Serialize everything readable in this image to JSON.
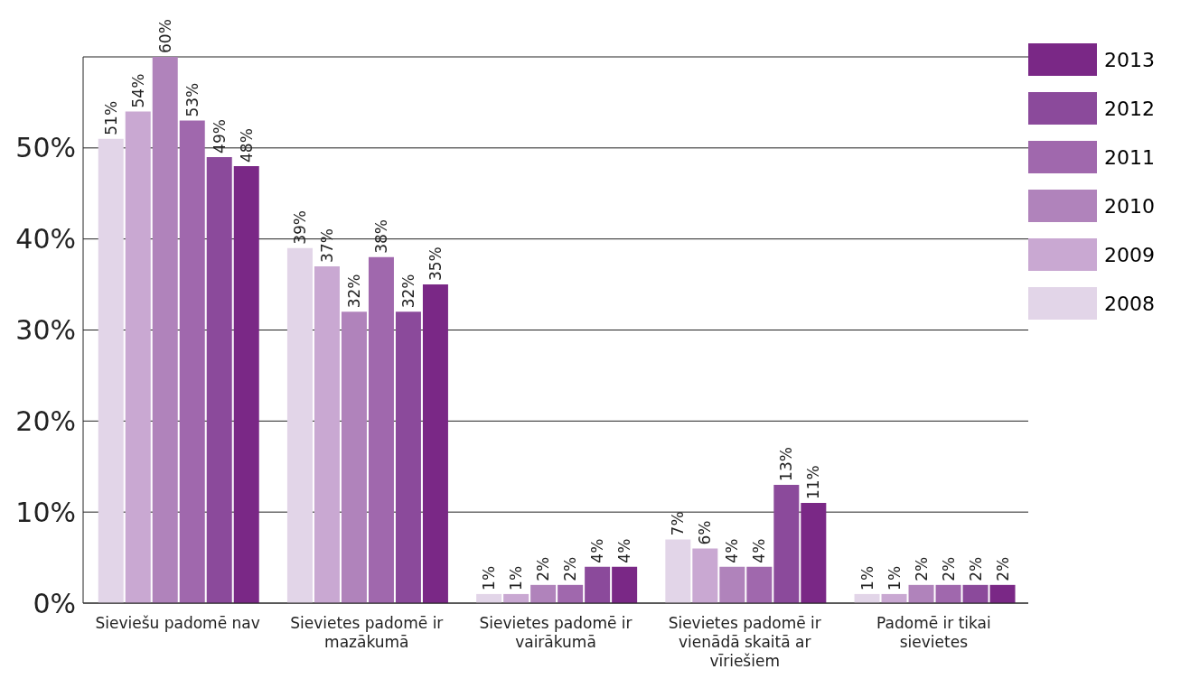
{
  "chart_data": {
    "type": "bar",
    "categories": [
      "Sieviešu padomē nav",
      "Sievietes padomē ir mazākumā",
      "Sievietes padomē ir vairākumā",
      "Sievietes padomē ir vienādā skaitā ar vīriešiem",
      "Padomē ir tikai sievietes"
    ],
    "series": [
      {
        "name": "2008",
        "color": "#e2d5e8",
        "values": [
          51,
          39,
          1,
          7,
          1
        ],
        "value_labels": [
          "51%",
          "39%",
          "1%",
          "7%",
          "1%"
        ]
      },
      {
        "name": "2009",
        "color": "#c9a8d2",
        "values": [
          54,
          37,
          1,
          6,
          1
        ],
        "value_labels": [
          "54%",
          "37%",
          "1%",
          "6%",
          "1%"
        ]
      },
      {
        "name": "2010",
        "color": "#b083bb",
        "values": [
          60,
          32,
          2,
          4,
          2
        ],
        "value_labels": [
          "60%",
          "32%",
          "2%",
          "4%",
          "2%"
        ]
      },
      {
        "name": "2011",
        "color": "#a068ad",
        "values": [
          53,
          38,
          2,
          4,
          2
        ],
        "value_labels": [
          "53%",
          "38%",
          "2%",
          "4%",
          "2%"
        ]
      },
      {
        "name": "2012",
        "color": "#8b4a9b",
        "values": [
          49,
          32,
          4,
          13,
          2
        ],
        "value_labels": [
          "49%",
          "32%",
          "4%",
          "13%",
          "2%"
        ]
      },
      {
        "name": "2013",
        "color": "#7a2886",
        "values": [
          48,
          35,
          4,
          11,
          2
        ],
        "value_labels": [
          "48%",
          "35%",
          "4%",
          "11%",
          "2%"
        ]
      }
    ],
    "ylim": [
      0,
      60
    ],
    "yticks": [
      {
        "value": 0,
        "label": "0%"
      },
      {
        "value": 10,
        "label": "10%"
      },
      {
        "value": 20,
        "label": "20%"
      },
      {
        "value": 30,
        "label": "30%"
      },
      {
        "value": 40,
        "label": "40%"
      },
      {
        "value": 50,
        "label": "50%"
      },
      {
        "value": 60,
        "label": null
      }
    ],
    "grid": "y",
    "legend": "right"
  }
}
